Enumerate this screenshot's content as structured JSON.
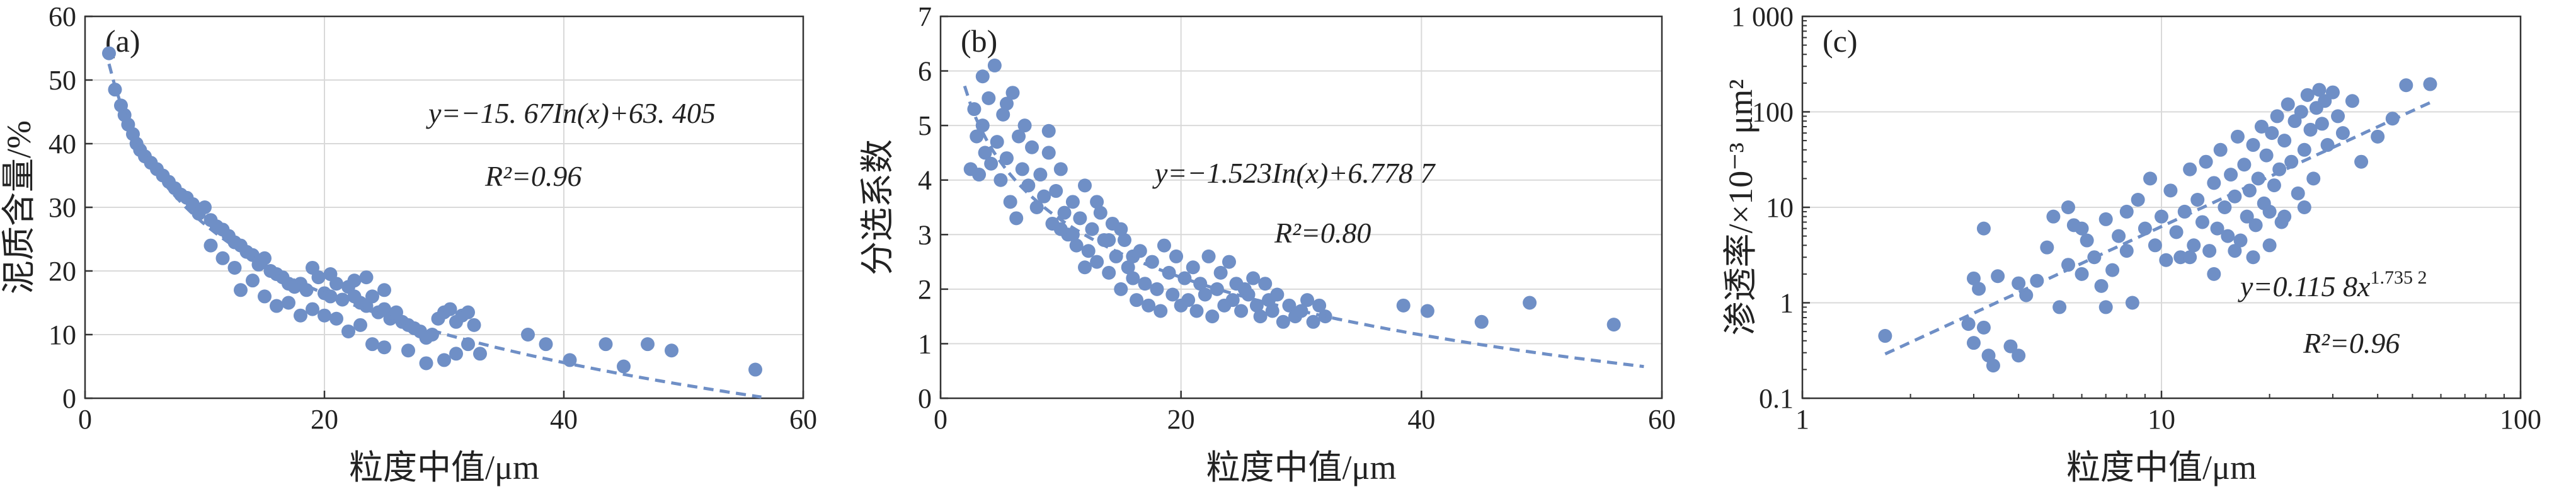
{
  "colors": {
    "marker": "#6f8fc6",
    "fit": "#6f8fc6",
    "grid": "#d9d9d9",
    "axis": "#333333"
  },
  "chart_data": [
    {
      "type": "scatter",
      "label": "(a)",
      "xlabel": "粒度中值/μm",
      "ylabel": "泥质含量/%",
      "xlim": [
        0,
        60
      ],
      "ylim": [
        0,
        60
      ],
      "xticks": [
        "0",
        "20",
        "40",
        "60"
      ],
      "yticks": [
        "0",
        "10",
        "20",
        "30",
        "40",
        "50",
        "60"
      ],
      "xscale": "linear",
      "yscale": "linear",
      "grid": true,
      "equation": "y=−15. 67In(x)+63. 405",
      "r2": "R²=0.96",
      "fit": {
        "kind": "log",
        "a": -15.67,
        "b": 63.405
      },
      "points": [
        [
          2.0,
          54.2
        ],
        [
          2.5,
          48.5
        ],
        [
          3.0,
          46.0
        ],
        [
          3.3,
          44.5
        ],
        [
          3.6,
          43.0
        ],
        [
          4.0,
          41.5
        ],
        [
          4.3,
          40.0
        ],
        [
          4.6,
          39.0
        ],
        [
          5.0,
          38.0
        ],
        [
          5.5,
          37.0
        ],
        [
          6.0,
          36.0
        ],
        [
          6.5,
          35.0
        ],
        [
          7.0,
          34.0
        ],
        [
          7.5,
          33.0
        ],
        [
          8.0,
          32.0
        ],
        [
          8.5,
          31.5
        ],
        [
          9.0,
          30.5
        ],
        [
          9.5,
          29.0
        ],
        [
          10.0,
          30.0
        ],
        [
          10.5,
          28.0
        ],
        [
          11.0,
          27.0
        ],
        [
          11.5,
          26.5
        ],
        [
          12.0,
          25.5
        ],
        [
          12.5,
          24.5
        ],
        [
          13.0,
          24.0
        ],
        [
          13.5,
          23.0
        ],
        [
          14.0,
          22.5
        ],
        [
          14.5,
          21.0
        ],
        [
          15.0,
          22.0
        ],
        [
          15.5,
          20.0
        ],
        [
          16.0,
          19.5
        ],
        [
          16.5,
          19.0
        ],
        [
          17.0,
          18.0
        ],
        [
          17.5,
          17.5
        ],
        [
          18.0,
          18.0
        ],
        [
          18.5,
          17.0
        ],
        [
          19.0,
          20.5
        ],
        [
          19.5,
          19.0
        ],
        [
          20.0,
          16.5
        ],
        [
          20.5,
          16.0
        ],
        [
          21.0,
          18.0
        ],
        [
          21.5,
          15.5
        ],
        [
          22.0,
          17.5
        ],
        [
          22.5,
          16.0
        ],
        [
          23.0,
          15.0
        ],
        [
          23.5,
          14.5
        ],
        [
          24.0,
          16.0
        ],
        [
          24.5,
          13.5
        ],
        [
          25.0,
          14.0
        ],
        [
          25.5,
          12.5
        ],
        [
          26.0,
          13.5
        ],
        [
          26.5,
          12.0
        ],
        [
          27.0,
          11.5
        ],
        [
          27.5,
          11.0
        ],
        [
          28.0,
          10.5
        ],
        [
          28.5,
          9.5
        ],
        [
          29.0,
          10.0
        ],
        [
          29.5,
          12.5
        ],
        [
          30.0,
          13.5
        ],
        [
          30.5,
          14.0
        ],
        [
          31.0,
          12.0
        ],
        [
          31.5,
          13.0
        ],
        [
          32.0,
          13.5
        ],
        [
          32.5,
          11.5
        ],
        [
          13.0,
          17.0
        ],
        [
          14.0,
          18.5
        ],
        [
          15.0,
          16.0
        ],
        [
          16.0,
          14.5
        ],
        [
          17.0,
          15.0
        ],
        [
          18.0,
          13.0
        ],
        [
          19.0,
          14.0
        ],
        [
          20.0,
          13.0
        ],
        [
          21.0,
          12.5
        ],
        [
          22.0,
          10.5
        ],
        [
          23.0,
          11.5
        ],
        [
          24.0,
          8.5
        ],
        [
          25.0,
          8.0
        ],
        [
          27.0,
          7.5
        ],
        [
          28.5,
          5.5
        ],
        [
          30.0,
          6.0
        ],
        [
          31.0,
          7.0
        ],
        [
          32.0,
          8.5
        ],
        [
          33.0,
          7.0
        ],
        [
          20.5,
          19.5
        ],
        [
          22.5,
          18.5
        ],
        [
          23.5,
          19.0
        ],
        [
          25.0,
          17.0
        ],
        [
          12.5,
          20.5
        ],
        [
          11.5,
          22.0
        ],
        [
          10.5,
          24.0
        ],
        [
          37.0,
          10.0
        ],
        [
          38.5,
          8.5
        ],
        [
          40.5,
          6.0
        ],
        [
          43.5,
          8.5
        ],
        [
          45.0,
          5.0
        ],
        [
          47.0,
          8.5
        ],
        [
          49.0,
          7.5
        ],
        [
          56.0,
          4.5
        ]
      ]
    },
    {
      "type": "scatter",
      "label": "(b)",
      "xlabel": "粒度中值/μm",
      "ylabel": "分选系数",
      "xlim": [
        0,
        60
      ],
      "ylim": [
        0,
        7
      ],
      "xticks": [
        "0",
        "20",
        "40",
        "60"
      ],
      "yticks": [
        "0",
        "1",
        "2",
        "3",
        "4",
        "5",
        "6",
        "7"
      ],
      "xscale": "linear",
      "yscale": "linear",
      "grid": true,
      "equation": "y=−1.523In(x)+6.778 7",
      "r2": "R²=0.80",
      "fit": {
        "kind": "log",
        "a": -1.523,
        "b": 6.7787
      },
      "points": [
        [
          2.5,
          4.2
        ],
        [
          2.8,
          5.3
        ],
        [
          3.0,
          4.8
        ],
        [
          3.2,
          4.1
        ],
        [
          3.5,
          5.0
        ],
        [
          3.7,
          4.5
        ],
        [
          4.0,
          5.5
        ],
        [
          4.2,
          4.3
        ],
        [
          4.5,
          6.1
        ],
        [
          4.7,
          4.7
        ],
        [
          5.0,
          4.0
        ],
        [
          5.2,
          5.2
        ],
        [
          5.5,
          4.4
        ],
        [
          5.8,
          3.6
        ],
        [
          6.0,
          5.6
        ],
        [
          6.3,
          3.3
        ],
        [
          6.5,
          4.8
        ],
        [
          6.8,
          4.2
        ],
        [
          7.0,
          5.0
        ],
        [
          7.3,
          3.9
        ],
        [
          7.6,
          4.6
        ],
        [
          8.0,
          3.5
        ],
        [
          8.3,
          4.1
        ],
        [
          8.6,
          3.7
        ],
        [
          9.0,
          4.5
        ],
        [
          9.3,
          3.2
        ],
        [
          9.6,
          3.8
        ],
        [
          10.0,
          4.2
        ],
        [
          10.3,
          3.4
        ],
        [
          10.6,
          3.0
        ],
        [
          11.0,
          3.6
        ],
        [
          11.3,
          2.8
        ],
        [
          11.6,
          3.3
        ],
        [
          12.0,
          3.9
        ],
        [
          12.3,
          2.7
        ],
        [
          12.6,
          3.1
        ],
        [
          13.0,
          2.5
        ],
        [
          13.3,
          3.4
        ],
        [
          13.6,
          2.9
        ],
        [
          14.0,
          2.3
        ],
        [
          14.3,
          3.2
        ],
        [
          14.6,
          2.6
        ],
        [
          15.0,
          2.0
        ],
        [
          15.3,
          2.9
        ],
        [
          15.6,
          2.4
        ],
        [
          16.0,
          2.2
        ],
        [
          16.3,
          1.8
        ],
        [
          16.6,
          2.7
        ],
        [
          17.0,
          2.1
        ],
        [
          17.3,
          1.7
        ],
        [
          17.6,
          2.5
        ],
        [
          18.0,
          2.0
        ],
        [
          18.3,
          1.6
        ],
        [
          18.6,
          2.8
        ],
        [
          19.0,
          2.3
        ],
        [
          19.3,
          1.9
        ],
        [
          19.6,
          2.6
        ],
        [
          20.0,
          1.7
        ],
        [
          20.3,
          2.2
        ],
        [
          20.6,
          1.8
        ],
        [
          21.0,
          2.4
        ],
        [
          21.3,
          1.6
        ],
        [
          21.6,
          2.1
        ],
        [
          22.0,
          1.9
        ],
        [
          22.3,
          2.6
        ],
        [
          22.6,
          1.5
        ],
        [
          23.0,
          2.0
        ],
        [
          23.3,
          2.3
        ],
        [
          23.6,
          1.7
        ],
        [
          24.0,
          2.5
        ],
        [
          24.3,
          1.8
        ],
        [
          24.6,
          2.1
        ],
        [
          25.0,
          1.6
        ],
        [
          25.3,
          2.0
        ],
        [
          25.6,
          1.9
        ],
        [
          26.0,
          2.2
        ],
        [
          26.3,
          1.7
        ],
        [
          26.6,
          1.5
        ],
        [
          27.0,
          2.1
        ],
        [
          27.3,
          1.8
        ],
        [
          27.6,
          1.6
        ],
        [
          28.0,
          1.9
        ],
        [
          28.5,
          1.4
        ],
        [
          29.0,
          1.7
        ],
        [
          29.5,
          1.5
        ],
        [
          30.0,
          1.6
        ],
        [
          30.5,
          1.8
        ],
        [
          31.0,
          1.4
        ],
        [
          31.5,
          1.7
        ],
        [
          32.0,
          1.5
        ],
        [
          9.0,
          4.9
        ],
        [
          10.0,
          3.1
        ],
        [
          11.0,
          3.0
        ],
        [
          12.0,
          2.4
        ],
        [
          13.0,
          3.6
        ],
        [
          14.0,
          2.9
        ],
        [
          15.0,
          3.1
        ],
        [
          16.0,
          2.6
        ],
        [
          3.5,
          5.9
        ],
        [
          5.5,
          5.4
        ],
        [
          38.5,
          1.7
        ],
        [
          40.5,
          1.6
        ],
        [
          45.0,
          1.4
        ],
        [
          49.0,
          1.75
        ],
        [
          56.0,
          1.35
        ]
      ]
    },
    {
      "type": "scatter",
      "label": "(c)",
      "xlabel": "粒度中值/μm",
      "ylabel": "渗透率/×10⁻³ μm²",
      "xlim": [
        1,
        100
      ],
      "ylim": [
        0.1,
        1000
      ],
      "xticks": [
        "1",
        "10",
        "100"
      ],
      "yticks": [
        "0.1",
        "1",
        "10",
        "100",
        "1 000"
      ],
      "xscale": "log",
      "yscale": "log",
      "grid": true,
      "equation": "y=0.115 8x",
      "equation_exponent": "1.735 2",
      "r2": "R²=0.96",
      "fit": {
        "kind": "power",
        "a": 0.1158,
        "b": 1.7352
      },
      "points": [
        [
          1.7,
          0.45
        ],
        [
          2.9,
          0.6
        ],
        [
          3.0,
          1.8
        ],
        [
          3.0,
          0.38
        ],
        [
          3.1,
          1.4
        ],
        [
          3.2,
          0.55
        ],
        [
          3.2,
          6.0
        ],
        [
          3.3,
          0.28
        ],
        [
          3.4,
          0.22
        ],
        [
          3.5,
          1.9
        ],
        [
          3.8,
          0.35
        ],
        [
          4.0,
          0.28
        ],
        [
          4.2,
          1.2
        ],
        [
          4.5,
          1.7
        ],
        [
          4.8,
          3.8
        ],
        [
          5.0,
          8.0
        ],
        [
          5.2,
          0.9
        ],
        [
          5.5,
          2.5
        ],
        [
          5.7,
          6.5
        ],
        [
          6.0,
          2.0
        ],
        [
          6.2,
          4.5
        ],
        [
          6.5,
          3.0
        ],
        [
          6.8,
          1.5
        ],
        [
          7.0,
          7.5
        ],
        [
          7.3,
          2.2
        ],
        [
          7.6,
          5.0
        ],
        [
          8.0,
          3.5
        ],
        [
          8.3,
          1.0
        ],
        [
          8.6,
          12.0
        ],
        [
          9.0,
          6.0
        ],
        [
          9.3,
          20.0
        ],
        [
          9.6,
          4.0
        ],
        [
          10.0,
          8.0
        ],
        [
          10.3,
          2.8
        ],
        [
          10.6,
          15.0
        ],
        [
          11.0,
          5.5
        ],
        [
          11.3,
          3.0
        ],
        [
          11.6,
          9.0
        ],
        [
          12.0,
          25.0
        ],
        [
          12.3,
          4.0
        ],
        [
          12.6,
          12.0
        ],
        [
          13.0,
          7.0
        ],
        [
          13.3,
          30.0
        ],
        [
          13.6,
          3.5
        ],
        [
          14.0,
          18.0
        ],
        [
          14.3,
          6.0
        ],
        [
          14.6,
          40.0
        ],
        [
          15.0,
          10.0
        ],
        [
          15.3,
          5.0
        ],
        [
          15.6,
          22.0
        ],
        [
          16.0,
          13.0
        ],
        [
          16.3,
          55.0
        ],
        [
          16.6,
          4.5
        ],
        [
          17.0,
          28.0
        ],
        [
          17.3,
          8.0
        ],
        [
          17.6,
          15.0
        ],
        [
          18.0,
          45.0
        ],
        [
          18.3,
          6.5
        ],
        [
          18.6,
          20.0
        ],
        [
          19.0,
          70.0
        ],
        [
          19.3,
          11.0
        ],
        [
          19.6,
          35.0
        ],
        [
          20.0,
          9.0
        ],
        [
          20.3,
          60.0
        ],
        [
          20.6,
          17.0
        ],
        [
          21.0,
          90.0
        ],
        [
          21.3,
          25.0
        ],
        [
          21.6,
          7.0
        ],
        [
          22.0,
          50.0
        ],
        [
          22.5,
          120.0
        ],
        [
          23.0,
          30.0
        ],
        [
          23.5,
          80.0
        ],
        [
          24.0,
          14.0
        ],
        [
          24.5,
          100.0
        ],
        [
          25.0,
          40.0
        ],
        [
          25.5,
          150.0
        ],
        [
          26.0,
          65.0
        ],
        [
          26.5,
          20.0
        ],
        [
          27.0,
          110.0
        ],
        [
          27.5,
          170.0
        ],
        [
          28.0,
          75.0
        ],
        [
          28.5,
          130.0
        ],
        [
          29.0,
          45.0
        ],
        [
          30.0,
          160.0
        ],
        [
          31.0,
          90.0
        ],
        [
          32.0,
          60.0
        ],
        [
          34.0,
          130.0
        ],
        [
          36.0,
          30.0
        ],
        [
          40.0,
          55.0
        ],
        [
          44.0,
          85.0
        ],
        [
          48.0,
          190.0
        ],
        [
          56.0,
          195.0
        ],
        [
          12.0,
          3.0
        ],
        [
          14.0,
          2.0
        ],
        [
          16.0,
          3.5
        ],
        [
          8.0,
          9.0
        ],
        [
          6.0,
          6.0
        ],
        [
          5.5,
          10.0
        ],
        [
          18.0,
          3.0
        ],
        [
          20.0,
          4.0
        ],
        [
          7.0,
          0.9
        ],
        [
          4.0,
          1.6
        ],
        [
          25.0,
          10.0
        ],
        [
          22.0,
          8.0
        ]
      ]
    }
  ]
}
